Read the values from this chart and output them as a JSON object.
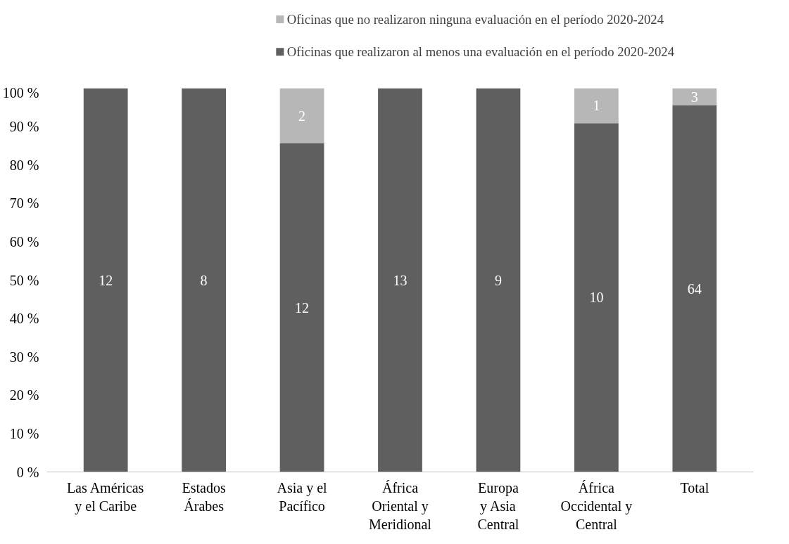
{
  "chart_data": {
    "type": "bar",
    "stacked": true,
    "categories": [
      "Las Américas\ny el Caribe",
      "Estados\nÁrabes",
      "Asia y el\nPacífico",
      "África\nOriental y\nMeridional",
      "Europa\ny Asia\nCentral",
      "África\nOccidental y\nCentral",
      "Total"
    ],
    "series": [
      {
        "name": "Oficinas que realizaron al menos una evaluación en el período 2020-2024",
        "color": "#5f5f5f",
        "values": [
          100,
          100,
          85.7,
          100,
          100,
          90.9,
          95.5
        ]
      },
      {
        "name": "Oficinas que no realizaron ninguna evaluación en el período 2020-2024",
        "color": "#b7b7b7",
        "values": [
          0,
          0,
          14.3,
          0,
          0,
          9.1,
          4.5
        ]
      }
    ],
    "annotations": [
      "12",
      "8",
      "12",
      "13",
      "9",
      "10",
      "64",
      "2",
      "1",
      "3"
    ],
    "ylim": [
      0,
      100
    ],
    "yticks": [
      {
        "value": 0,
        "label": "0 %"
      },
      {
        "value": 10,
        "label": "10 %"
      },
      {
        "value": 20,
        "label": "20 %"
      },
      {
        "value": 30,
        "label": "30 %"
      },
      {
        "value": 40,
        "label": "40 %"
      },
      {
        "value": 50,
        "label": "50 %"
      },
      {
        "value": 60,
        "label": "60 %"
      },
      {
        "value": 70,
        "label": "70 %"
      },
      {
        "value": 80,
        "label": "80 %"
      },
      {
        "value": 90,
        "label": "90 %"
      },
      {
        "value": 100,
        "label": "100 %"
      }
    ],
    "legend": "top"
  }
}
